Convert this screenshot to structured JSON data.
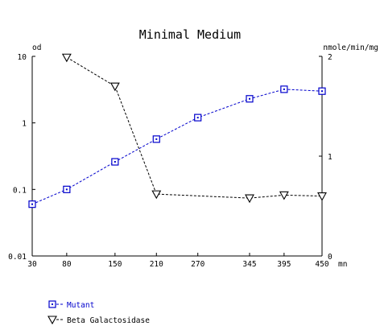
{
  "chart_data": {
    "type": "line",
    "title": "Minimal Medium",
    "xlabel": "mn",
    "ylabel_left": "od",
    "ylabel_right": "nmole/min/mg",
    "x_ticks": [
      "30",
      "80",
      "150",
      "210",
      "270",
      "345",
      "395",
      "450"
    ],
    "x_range": [
      30,
      450
    ],
    "x_scale": "linear",
    "y_left": {
      "scale": "log",
      "range": [
        0.01,
        10
      ],
      "ticks": [
        "0.01",
        "0.1",
        "1",
        "10"
      ]
    },
    "y_right": {
      "scale": "linear",
      "range": [
        0,
        2
      ],
      "ticks": [
        "0",
        "1",
        "2"
      ]
    },
    "grid": false,
    "legend_position": "bottom-left",
    "series": [
      {
        "name": "Mutant",
        "axis": "left",
        "marker": "square",
        "color": "#0000cc",
        "line_style": "dashed",
        "x": [
          30,
          80,
          150,
          210,
          270,
          345,
          395,
          450
        ],
        "y": [
          0.06,
          0.1,
          0.26,
          0.57,
          1.2,
          2.3,
          3.2,
          3.0
        ]
      },
      {
        "name": "Beta Galactosidase",
        "axis": "right",
        "marker": "triangle-down",
        "color": "#000000",
        "line_style": "dashed",
        "x": [
          80,
          150,
          210,
          345,
          395,
          450
        ],
        "y": [
          1.99,
          1.7,
          0.62,
          0.58,
          0.61,
          0.6
        ]
      }
    ]
  }
}
